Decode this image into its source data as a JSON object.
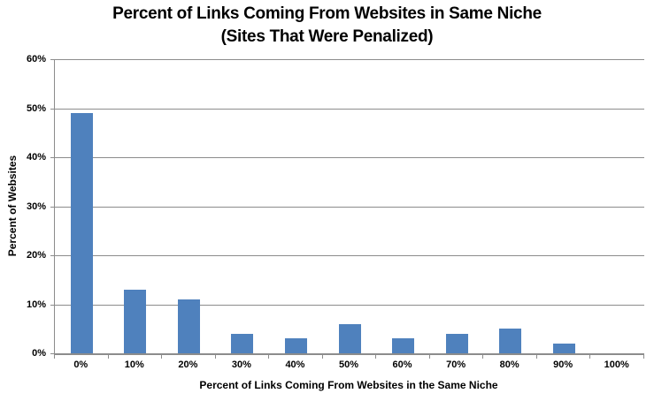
{
  "chart": {
    "title_line1": "Percent of Links Coming From Websites in Same Niche",
    "title_line2": "(Sites That Were Penalized)",
    "xlabel": "Percent of Links Coming From Websites in the Same Niche",
    "ylabel": "Percent of Websites"
  },
  "chart_data": {
    "type": "bar",
    "title": "Percent of Links Coming From Websites in Same Niche (Sites That Were Penalized)",
    "categories": [
      "0%",
      "10%",
      "20%",
      "30%",
      "40%",
      "50%",
      "60%",
      "70%",
      "80%",
      "90%",
      "100%"
    ],
    "values": [
      49,
      13,
      11,
      4,
      3,
      6,
      3,
      4,
      5,
      2,
      0
    ],
    "xlabel": "Percent of Links Coming From Websites in the Same Niche",
    "ylabel": "Percent of Websites",
    "ylim": [
      0,
      60
    ],
    "ytick_step": 10,
    "ytick_labels": [
      "0%",
      "10%",
      "20%",
      "30%",
      "40%",
      "50%",
      "60%"
    ],
    "grid": true,
    "legend": "none",
    "bar_color": "#4f81bd",
    "gridline_color": "#8c8c8c",
    "axis_color": "#8c8c8c",
    "text_color": "#000000",
    "background_color": "#ffffff"
  }
}
